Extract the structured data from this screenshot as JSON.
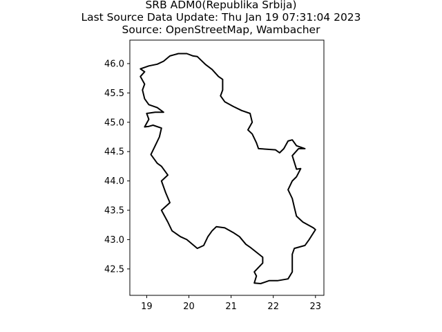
{
  "chart_data": {
    "type": "map",
    "title_lines": [
      "SRB ADM0(Republika Srbija)",
      "Last Source Data Update: Thu Jan 19 07:31:04 2023",
      "Source: OpenStreetMap, Wambacher"
    ],
    "xlim": [
      18.6,
      23.2
    ],
    "ylim": [
      42.05,
      46.4
    ],
    "xticks": [
      19,
      20,
      21,
      22,
      23
    ],
    "yticks": [
      42.5,
      43.0,
      43.5,
      44.0,
      44.5,
      45.0,
      45.5,
      46.0
    ],
    "ytick_labels": [
      "42.5",
      "43.0",
      "43.5",
      "44.0",
      "44.5",
      "45.0",
      "45.5",
      "46.0"
    ],
    "grid": false,
    "line_color": "#000000",
    "outline_lon_lat": [
      [
        18.85,
        45.91
      ],
      [
        19.05,
        45.96
      ],
      [
        19.25,
        45.99
      ],
      [
        19.4,
        46.04
      ],
      [
        19.55,
        46.13
      ],
      [
        19.75,
        46.17
      ],
      [
        19.95,
        46.17
      ],
      [
        20.1,
        46.13
      ],
      [
        20.2,
        46.12
      ],
      [
        20.3,
        46.05
      ],
      [
        20.4,
        45.98
      ],
      [
        20.55,
        45.9
      ],
      [
        20.7,
        45.78
      ],
      [
        20.8,
        45.73
      ],
      [
        20.8,
        45.55
      ],
      [
        20.75,
        45.45
      ],
      [
        20.85,
        45.35
      ],
      [
        21.05,
        45.27
      ],
      [
        21.25,
        45.2
      ],
      [
        21.45,
        45.15
      ],
      [
        21.5,
        45.0
      ],
      [
        21.4,
        44.87
      ],
      [
        21.5,
        44.8
      ],
      [
        21.6,
        44.65
      ],
      [
        21.65,
        44.55
      ],
      [
        22.05,
        44.53
      ],
      [
        22.15,
        44.48
      ],
      [
        22.25,
        44.55
      ],
      [
        22.35,
        44.68
      ],
      [
        22.45,
        44.7
      ],
      [
        22.55,
        44.6
      ],
      [
        22.75,
        44.55
      ],
      [
        22.6,
        44.55
      ],
      [
        22.45,
        44.43
      ],
      [
        22.55,
        44.2
      ],
      [
        22.65,
        44.21
      ],
      [
        22.55,
        44.07
      ],
      [
        22.45,
        44.0
      ],
      [
        22.35,
        43.85
      ],
      [
        22.45,
        43.7
      ],
      [
        22.5,
        43.55
      ],
      [
        22.55,
        43.4
      ],
      [
        22.7,
        43.3
      ],
      [
        22.95,
        43.2
      ],
      [
        23.0,
        43.17
      ],
      [
        22.85,
        43.0
      ],
      [
        22.75,
        42.9
      ],
      [
        22.5,
        42.85
      ],
      [
        22.45,
        42.75
      ],
      [
        22.45,
        42.55
      ],
      [
        22.45,
        42.45
      ],
      [
        22.35,
        42.33
      ],
      [
        22.1,
        42.3
      ],
      [
        21.9,
        42.3
      ],
      [
        21.7,
        42.25
      ],
      [
        21.55,
        42.26
      ],
      [
        21.6,
        42.38
      ],
      [
        21.55,
        42.45
      ],
      [
        21.75,
        42.6
      ],
      [
        21.75,
        42.7
      ],
      [
        21.45,
        42.87
      ],
      [
        21.35,
        42.92
      ],
      [
        21.2,
        43.05
      ],
      [
        21.05,
        43.12
      ],
      [
        20.85,
        43.2
      ],
      [
        20.65,
        43.22
      ],
      [
        20.55,
        43.15
      ],
      [
        20.45,
        43.05
      ],
      [
        20.35,
        42.9
      ],
      [
        20.2,
        42.85
      ],
      [
        19.95,
        43.0
      ],
      [
        19.8,
        43.05
      ],
      [
        19.6,
        43.15
      ],
      [
        19.5,
        43.3
      ],
      [
        19.35,
        43.5
      ],
      [
        19.55,
        43.63
      ],
      [
        19.45,
        43.8
      ],
      [
        19.35,
        44.0
      ],
      [
        19.5,
        44.1
      ],
      [
        19.35,
        44.25
      ],
      [
        19.25,
        44.3
      ],
      [
        19.1,
        44.45
      ],
      [
        19.2,
        44.6
      ],
      [
        19.3,
        44.75
      ],
      [
        19.35,
        44.9
      ],
      [
        19.15,
        44.95
      ],
      [
        19.05,
        44.93
      ],
      [
        18.95,
        44.92
      ],
      [
        19.05,
        45.05
      ],
      [
        19.0,
        45.15
      ],
      [
        19.2,
        45.17
      ],
      [
        19.4,
        45.17
      ],
      [
        19.25,
        45.25
      ],
      [
        19.05,
        45.3
      ],
      [
        18.95,
        45.4
      ],
      [
        18.9,
        45.55
      ],
      [
        18.95,
        45.65
      ],
      [
        18.85,
        45.78
      ],
      [
        18.95,
        45.86
      ]
    ]
  }
}
